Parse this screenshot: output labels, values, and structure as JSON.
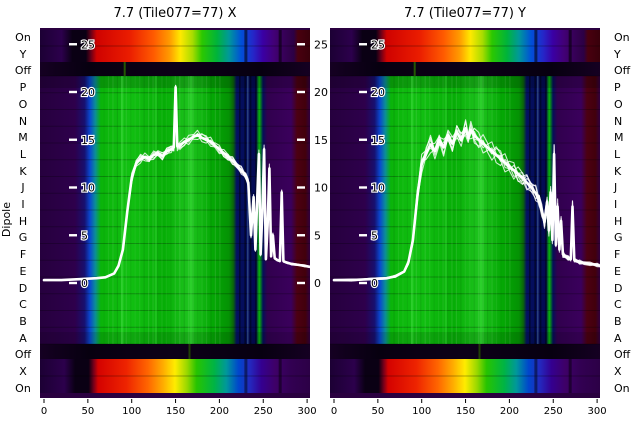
{
  "figure": {
    "ylabel": "Dipole",
    "dipole_labels": [
      "On",
      "Y",
      "Off",
      "P",
      "O",
      "N",
      "M",
      "L",
      "K",
      "J",
      "I",
      "H",
      "G",
      "F",
      "E",
      "D",
      "C",
      "B",
      "A",
      "Off",
      "X",
      "On"
    ],
    "colormap": {
      "background": "#2a0040",
      "line": "#ffffff",
      "strip_top": [
        [
          0.0,
          "#1c0034"
        ],
        [
          0.08,
          "#2c004c"
        ],
        [
          0.12,
          "#0a0014"
        ],
        [
          0.17,
          "#0a0014"
        ],
        [
          0.19,
          "#6e0018"
        ],
        [
          0.21,
          "#cf0200"
        ],
        [
          0.33,
          "#ea1c00"
        ],
        [
          0.42,
          "#ff5a00"
        ],
        [
          0.48,
          "#ff9b00"
        ],
        [
          0.52,
          "#ffe900"
        ],
        [
          0.565,
          "#a8dc00"
        ],
        [
          0.6,
          "#2bc800"
        ],
        [
          0.655,
          "#00b43a"
        ],
        [
          0.7,
          "#00989a"
        ],
        [
          0.745,
          "#0050d8"
        ],
        [
          0.79,
          "#2526c8"
        ],
        [
          0.825,
          "#3a00a4"
        ],
        [
          0.865,
          "#420078"
        ],
        [
          0.9,
          "#38005a"
        ],
        [
          0.94,
          "#2c0044"
        ],
        [
          0.955,
          "#49000f"
        ],
        [
          1.0,
          "#38000b"
        ]
      ],
      "strip_bottom": [
        [
          0.0,
          "#1c0034"
        ],
        [
          0.09,
          "#2c004c"
        ],
        [
          0.13,
          "#0a0014"
        ],
        [
          0.18,
          "#0a0014"
        ],
        [
          0.2,
          "#7c001a"
        ],
        [
          0.215,
          "#d40200"
        ],
        [
          0.32,
          "#ee2400"
        ],
        [
          0.4,
          "#ff6600"
        ],
        [
          0.455,
          "#ffab00"
        ],
        [
          0.5,
          "#ffec00"
        ],
        [
          0.545,
          "#97d800"
        ],
        [
          0.58,
          "#26c400"
        ],
        [
          0.645,
          "#00b444"
        ],
        [
          0.69,
          "#00989a"
        ],
        [
          0.735,
          "#0047cc"
        ],
        [
          0.78,
          "#2526bc"
        ],
        [
          0.82,
          "#340090"
        ],
        [
          0.87,
          "#3e0068"
        ],
        [
          0.93,
          "#320052"
        ],
        [
          1.0,
          "#2c0046"
        ]
      ],
      "main": [
        [
          0.0,
          "#26003e"
        ],
        [
          0.13,
          "#2e004c"
        ],
        [
          0.165,
          "#171070"
        ],
        [
          0.185,
          "#0a48cf"
        ],
        [
          0.205,
          "#0b8e96"
        ],
        [
          0.225,
          "#0ab40a"
        ],
        [
          0.33,
          "#12c012"
        ],
        [
          0.46,
          "#06ae06"
        ],
        [
          0.555,
          "#1ec41e"
        ],
        [
          0.64,
          "#04a804"
        ],
        [
          0.7,
          "#049204"
        ],
        [
          0.716,
          "#0a660a"
        ],
        [
          0.728,
          "#041062"
        ],
        [
          0.8,
          "#030a52"
        ],
        [
          0.812,
          "#08b808"
        ],
        [
          0.826,
          "#041058"
        ],
        [
          0.842,
          "#31004e"
        ],
        [
          0.93,
          "#3a005c"
        ],
        [
          0.952,
          "#4c0012"
        ],
        [
          0.983,
          "#42000c"
        ],
        [
          1.0,
          "#300040"
        ]
      ],
      "off_band": [
        [
          0.0,
          "#150022"
        ],
        [
          0.18,
          "#070010"
        ],
        [
          0.5,
          "#0d0018"
        ],
        [
          0.82,
          "#070010"
        ],
        [
          1.0,
          "#150022"
        ]
      ]
    }
  },
  "chart_data": [
    {
      "type": "heatmap",
      "title": "7.7 (Tile077=77) X",
      "xlim": [
        0,
        303
      ],
      "x_ticks": [
        0,
        50,
        100,
        150,
        200,
        250,
        300
      ],
      "inner_y_ticks": [
        25,
        20,
        15,
        10,
        5,
        0
      ],
      "has_right_ticks": true,
      "row_count": 22,
      "line": {
        "name": "spectrum-overlay-x",
        "spread": 0.5,
        "x": [
          0,
          20,
          40,
          60,
          70,
          80,
          85,
          90,
          95,
          100,
          105,
          110,
          115,
          120,
          125,
          130,
          135,
          140,
          145,
          148,
          150,
          152,
          155,
          160,
          165,
          170,
          175,
          180,
          185,
          190,
          195,
          200,
          205,
          210,
          215,
          220,
          225,
          230,
          233,
          236,
          239,
          241,
          243,
          245,
          247,
          249,
          251,
          253,
          255,
          257,
          259,
          261,
          263,
          266,
          269,
          271,
          273,
          275,
          278,
          282,
          290,
          297,
          303
        ],
        "y": [
          0.3,
          0.3,
          0.4,
          0.5,
          0.6,
          1.0,
          1.8,
          3.5,
          7.5,
          11,
          12.5,
          13,
          13.2,
          13,
          13.4,
          13.6,
          13.3,
          13.8,
          14,
          14.2,
          20.5,
          14.3,
          14.4,
          14.8,
          15,
          15.3,
          15.5,
          15.2,
          15,
          14.8,
          14.4,
          14,
          13.6,
          13.2,
          12.8,
          12.3,
          11.8,
          11.2,
          10.5,
          5,
          9,
          3.5,
          8.5,
          13.5,
          3,
          7.5,
          14,
          2.5,
          6,
          12,
          2.8,
          5,
          2.6,
          2.4,
          2.3,
          9.5,
          2.3,
          2.2,
          2.1,
          2.0,
          1.9,
          1.8,
          1.7
        ]
      }
    },
    {
      "type": "heatmap",
      "title": "7.7 (Tile077=77) Y",
      "xlim": [
        0,
        303
      ],
      "x_ticks": [
        0,
        50,
        100,
        150,
        200,
        250,
        300
      ],
      "inner_y_ticks": [
        25,
        20,
        15,
        10,
        5,
        0
      ],
      "has_right_ticks": false,
      "row_count": 22,
      "line": {
        "name": "spectrum-overlay-y",
        "spread": 1.0,
        "x": [
          0,
          20,
          40,
          60,
          70,
          80,
          85,
          90,
          95,
          100,
          105,
          110,
          115,
          120,
          125,
          130,
          135,
          140,
          145,
          150,
          153,
          156,
          160,
          165,
          170,
          175,
          180,
          185,
          190,
          195,
          200,
          205,
          210,
          215,
          220,
          225,
          230,
          234,
          237,
          240,
          243,
          245,
          247,
          249,
          251,
          253,
          255,
          257,
          259,
          261,
          264,
          267,
          270,
          272,
          274,
          277,
          280,
          285,
          292,
          300,
          303
        ],
        "y": [
          0.3,
          0.3,
          0.4,
          0.5,
          0.7,
          1.2,
          2.2,
          4.5,
          9,
          12.5,
          13.5,
          14.5,
          13.8,
          15,
          14.2,
          15.5,
          14.6,
          15.8,
          15,
          16.2,
          15.2,
          16,
          15.5,
          15,
          14.6,
          14.2,
          13.8,
          13.4,
          13,
          12.6,
          12.2,
          11.8,
          11.4,
          11,
          10.5,
          10,
          9.4,
          8.6,
          7.6,
          6.4,
          8.5,
          5.5,
          9.5,
          4.5,
          13.5,
          4,
          8,
          3.5,
          6.5,
          3,
          2.8,
          2.6,
          2.5,
          8,
          2.4,
          2.3,
          2.2,
          2.1,
          2.0,
          1.9,
          1.8
        ]
      }
    }
  ]
}
